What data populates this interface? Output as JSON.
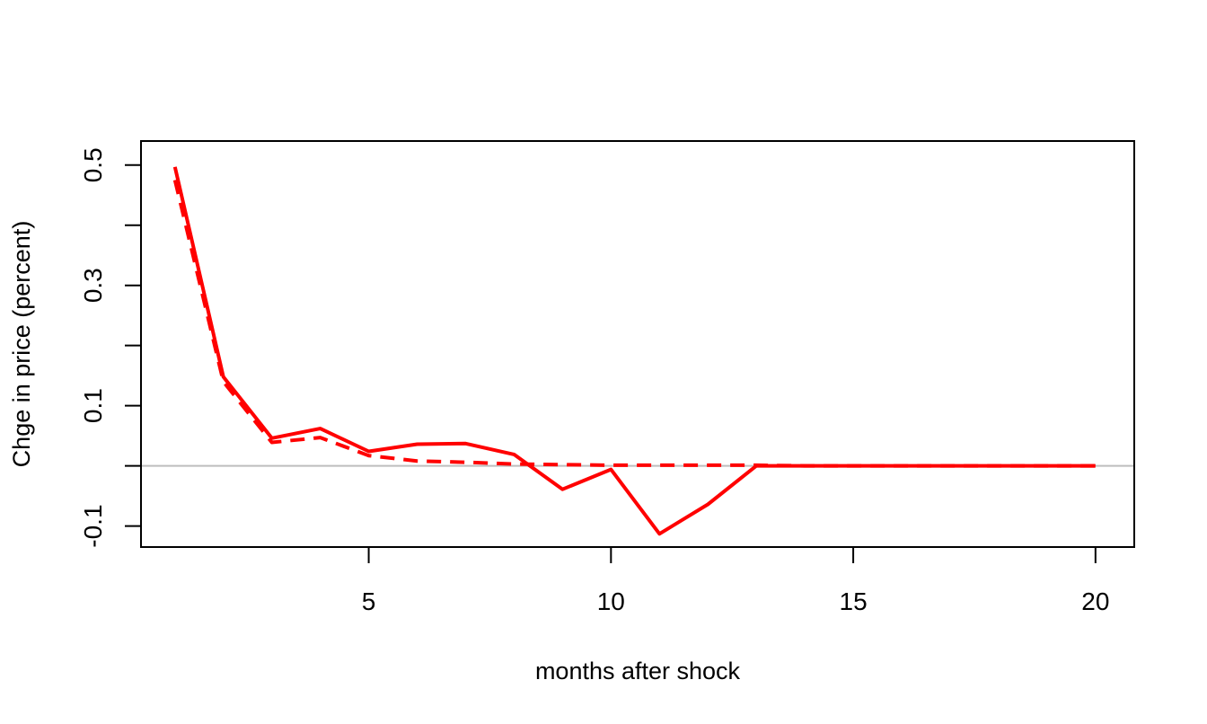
{
  "chart_data": {
    "type": "line",
    "title": "",
    "xlabel": "months after shock",
    "ylabel": "Chge in price (percent)",
    "xlim": [
      0.3,
      20.8
    ],
    "ylim": [
      -0.135,
      0.54
    ],
    "x_ticks": [
      5,
      10,
      15,
      20
    ],
    "x_tick_labels": [
      "5",
      "10",
      "15",
      "20"
    ],
    "y_ticks": [
      -0.1,
      0.0,
      0.1,
      0.2,
      0.3,
      0.4,
      0.5
    ],
    "y_tick_labels": [
      "-0.1",
      "",
      "0.1",
      "",
      "0.3",
      "",
      "0.5"
    ],
    "grid": false,
    "legend": "none",
    "reference_line": {
      "y": 0,
      "color": "#bebebe"
    },
    "series": [
      {
        "style": "solid",
        "color": "#ff0000",
        "x": [
          1,
          2,
          3,
          4,
          5,
          6,
          7,
          8,
          9,
          10,
          11,
          12,
          13,
          14,
          15,
          16,
          17,
          18,
          19,
          20
        ],
        "values": [
          0.497,
          0.148,
          0.046,
          0.062,
          0.024,
          0.036,
          0.037,
          0.019,
          -0.039,
          -0.006,
          -0.113,
          -0.064,
          0.0,
          0.0,
          0.0,
          0.0,
          0.0,
          0.0,
          0.0,
          0.0
        ]
      },
      {
        "style": "dashed",
        "color": "#ff0000",
        "x": [
          1,
          2,
          3,
          4,
          5,
          6,
          7,
          8,
          9,
          10,
          11,
          12,
          13,
          14,
          15,
          16,
          17,
          18,
          19,
          20
        ],
        "values": [
          0.475,
          0.14,
          0.039,
          0.047,
          0.017,
          0.008,
          0.006,
          0.003,
          0.002,
          0.001,
          0.001,
          0.001,
          0.001,
          0.0,
          0.0,
          0.0,
          0.0,
          0.0,
          0.0,
          0.0
        ]
      }
    ]
  }
}
